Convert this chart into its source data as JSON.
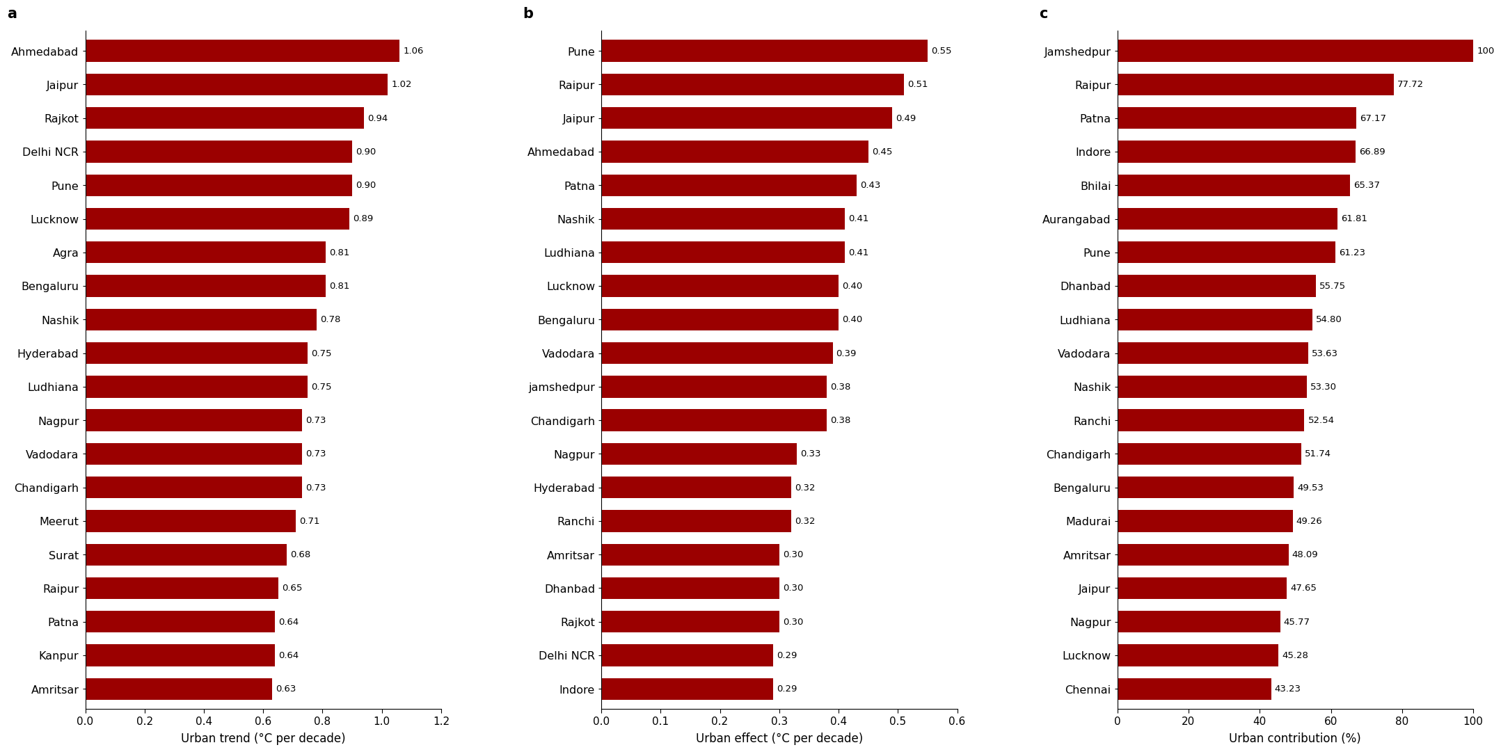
{
  "panel_a": {
    "label": "a",
    "cities": [
      "Ahmedabad",
      "Jaipur",
      "Rajkot",
      "Delhi NCR",
      "Pune",
      "Lucknow",
      "Agra",
      "Bengaluru",
      "Nashik",
      "Hyderabad",
      "Ludhiana",
      "Nagpur",
      "Vadodara",
      "Chandigarh",
      "Meerut",
      "Surat",
      "Raipur",
      "Patna",
      "Kanpur",
      "Amritsar"
    ],
    "values": [
      1.06,
      1.02,
      0.94,
      0.9,
      0.9,
      0.89,
      0.81,
      0.81,
      0.78,
      0.75,
      0.75,
      0.73,
      0.73,
      0.73,
      0.71,
      0.68,
      0.65,
      0.64,
      0.64,
      0.63
    ],
    "xlabel": "Urban trend (°C per decade)",
    "xlim": [
      0,
      1.2
    ],
    "xticks": [
      0,
      0.2,
      0.4,
      0.6,
      0.8,
      1.0,
      1.2
    ]
  },
  "panel_b": {
    "label": "b",
    "cities": [
      "Pune",
      "Raipur",
      "Jaipur",
      "Ahmedabad",
      "Patna",
      "Nashik",
      "Ludhiana",
      "Lucknow",
      "Bengaluru",
      "Vadodara",
      "jamshedpur",
      "Chandigarh",
      "Nagpur",
      "Hyderabad",
      "Ranchi",
      "Amritsar",
      "Dhanbad",
      "Rajkot",
      "Delhi NCR",
      "Indore"
    ],
    "values": [
      0.55,
      0.51,
      0.49,
      0.45,
      0.43,
      0.41,
      0.41,
      0.4,
      0.4,
      0.39,
      0.38,
      0.38,
      0.33,
      0.32,
      0.32,
      0.3,
      0.3,
      0.3,
      0.29,
      0.29
    ],
    "xlabel": "Urban effect (°C per decade)",
    "xlim": [
      0,
      0.6
    ],
    "xticks": [
      0,
      0.1,
      0.2,
      0.3,
      0.4,
      0.5,
      0.6
    ]
  },
  "panel_c": {
    "label": "c",
    "cities": [
      "Jamshedpur",
      "Raipur",
      "Patna",
      "Indore",
      "Bhilai",
      "Aurangabad",
      "Pune",
      "Dhanbad",
      "Ludhiana",
      "Vadodara",
      "Nashik",
      "Ranchi",
      "Chandigarh",
      "Bengaluru",
      "Madurai",
      "Amritsar",
      "Jaipur",
      "Nagpur",
      "Lucknow",
      "Chennai"
    ],
    "values": [
      100,
      77.72,
      67.17,
      66.89,
      65.37,
      61.81,
      61.23,
      55.75,
      54.8,
      53.63,
      53.3,
      52.54,
      51.74,
      49.53,
      49.26,
      48.09,
      47.65,
      45.77,
      45.28,
      43.23
    ],
    "xlabel": "Urban contribution (%)",
    "xlim": [
      0,
      100
    ],
    "xticks": [
      0,
      20,
      40,
      60,
      80,
      100
    ]
  },
  "bar_color": "#9b0000",
  "bg_color": "#ffffff",
  "city_fontsize": 11.5,
  "tick_fontsize": 11,
  "value_fontsize": 9.5,
  "panel_label_fontsize": 15
}
